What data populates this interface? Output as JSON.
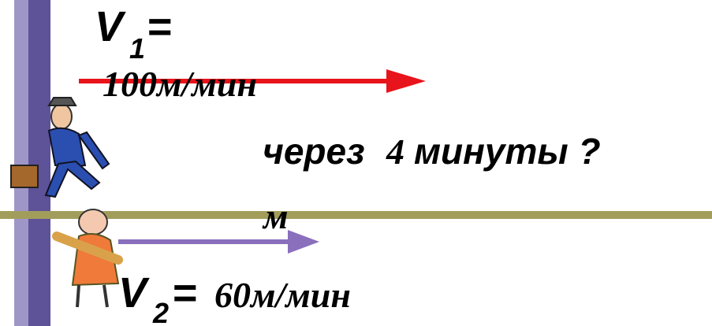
{
  "velocity_1": {
    "symbol": "V",
    "subscript": "1",
    "equals": "=",
    "value": "100м/мин"
  },
  "question": {
    "word_1": "через",
    "number": "4",
    "word_2": "минуты ?",
    "unit": "м"
  },
  "velocity_2": {
    "symbol": "V",
    "subscript": "2",
    "equals": "=",
    "value": "60м/мин"
  }
}
